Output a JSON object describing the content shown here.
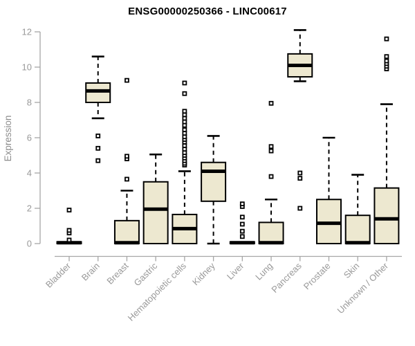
{
  "title": "ENSG00000250366 - LINC00617",
  "chart_data": {
    "type": "boxplot",
    "title": "ENSG00000250366 - LINC00617",
    "xlabel": "",
    "ylabel": "Expression",
    "ylim": [
      0,
      12.2
    ],
    "yticks": [
      0,
      2,
      4,
      6,
      8,
      10,
      12
    ],
    "grid": false,
    "legend": "none",
    "categories": [
      "Bladder",
      "Brain",
      "Breast",
      "Gastric",
      "Hematopoietic cells",
      "Kidney",
      "Liver",
      "Lung",
      "Pancreas",
      "Prostate",
      "Skin",
      "Unknown / Other"
    ],
    "series": [
      {
        "category": "Bladder",
        "low": 0,
        "q1": 0,
        "median": 0.05,
        "q3": 0.1,
        "high": 0.1,
        "outliers": [
          0.2,
          0.6,
          0.75,
          1.9
        ]
      },
      {
        "category": "Brain",
        "low": 7.1,
        "q1": 8.0,
        "median": 8.65,
        "q3": 9.1,
        "high": 10.6,
        "outliers": [
          4.7,
          5.4,
          6.1
        ]
      },
      {
        "category": "Breast",
        "low": 0,
        "q1": 0,
        "median": 0.05,
        "q3": 1.3,
        "high": 3.0,
        "outliers": [
          3.65,
          4.8,
          4.95,
          9.25
        ]
      },
      {
        "category": "Gastric",
        "low": 0,
        "q1": 0,
        "median": 1.95,
        "q3": 3.5,
        "high": 5.05,
        "outliers": []
      },
      {
        "category": "Hematopoietic cells",
        "low": 0,
        "q1": 0,
        "median": 0.85,
        "q3": 1.65,
        "high": 4.1,
        "outliers": [
          4.45,
          4.55,
          4.7,
          4.85,
          5.0,
          5.15,
          5.35,
          5.55,
          5.75,
          5.9,
          6.05,
          6.25,
          6.45,
          6.7,
          6.9,
          7.1,
          7.3,
          7.5,
          8.5,
          9.1
        ]
      },
      {
        "category": "Kidney",
        "low": 0,
        "q1": 2.4,
        "median": 4.1,
        "q3": 4.6,
        "high": 6.1,
        "outliers": []
      },
      {
        "category": "Liver",
        "low": 0,
        "q1": 0,
        "median": 0.05,
        "q3": 0.1,
        "high": 0.1,
        "outliers": [
          0.4,
          0.7,
          1.1,
          1.5,
          2.1,
          2.25
        ]
      },
      {
        "category": "Lung",
        "low": 0,
        "q1": 0,
        "median": 0.05,
        "q3": 1.2,
        "high": 2.5,
        "outliers": [
          3.8,
          5.25,
          5.5,
          7.95
        ]
      },
      {
        "category": "Pancreas",
        "low": 9.2,
        "q1": 9.45,
        "median": 10.1,
        "q3": 10.75,
        "high": 12.1,
        "outliers": [
          2.0,
          3.7,
          4.0
        ]
      },
      {
        "category": "Prostate",
        "low": 0,
        "q1": 0,
        "median": 1.15,
        "q3": 2.5,
        "high": 6.0,
        "outliers": []
      },
      {
        "category": "Skin",
        "low": 0,
        "q1": 0,
        "median": 0.05,
        "q3": 1.6,
        "high": 3.9,
        "outliers": []
      },
      {
        "category": "Unknown / Other",
        "low": 0,
        "q1": 0,
        "median": 1.4,
        "q3": 3.15,
        "high": 7.9,
        "outliers": [
          9.9,
          10.05,
          10.2,
          10.35,
          10.6,
          11.6
        ]
      }
    ],
    "colors": {
      "box_fill": "#EDE8D0",
      "box_stroke": "#000000",
      "median": "#000000",
      "whisker": "#000000",
      "outlier_fill": "#ffffff",
      "axis_line": "#A6A6A6",
      "tick_label": "#999999",
      "axis_title": "#8C8C8C",
      "title_text": "#000000",
      "background": "#ffffff"
    }
  }
}
